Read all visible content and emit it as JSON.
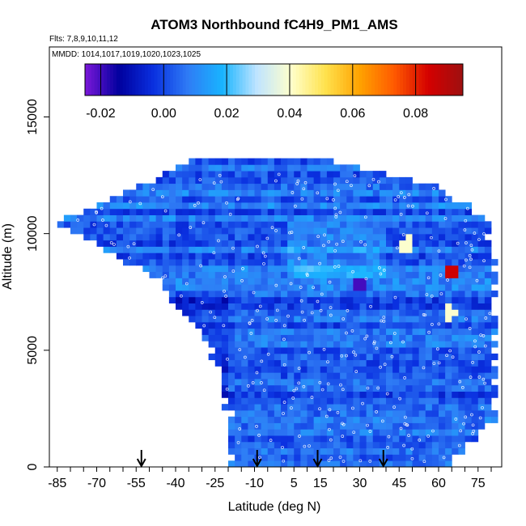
{
  "chart_data": {
    "type": "heatmap",
    "title": "ATOM3 Northbound fC4H9_PM1_AMS",
    "annotations": [
      "Flts: 7,8,9,10,11,12",
      "MMDD: 1014,1017,1019,1020,1023,1025"
    ],
    "xlabel": "Latitude (deg N)",
    "ylabel": "Altitude (m)",
    "xlim": [
      -88,
      84
    ],
    "ylim": [
      0,
      18000
    ],
    "x_ticks": [
      -85,
      -70,
      -55,
      -40,
      -25,
      -10,
      5,
      15,
      30,
      45,
      60,
      75
    ],
    "y_ticks": [
      0,
      5000,
      10000,
      15000
    ],
    "colorbar": {
      "range": [
        -0.025,
        0.095
      ],
      "ticks": [
        -0.02,
        0.0,
        0.02,
        0.04,
        0.06,
        0.08
      ],
      "tick_labels": [
        "-0.02",
        "0.00",
        "0.02",
        "0.04",
        "0.06",
        "0.08"
      ],
      "colors": [
        "#7b17d9",
        "#00009e",
        "#0a30e0",
        "#2f7cf5",
        "#19b4ff",
        "#bfe4ff",
        "#ffffcc",
        "#ffe24d",
        "#ffa200",
        "#ff5a00",
        "#d40000",
        "#9e1010"
      ]
    },
    "coverage_lat_bounds": [
      [
        0,
        -18,
        62
      ],
      [
        2000,
        -18,
        80
      ],
      [
        5000,
        -25,
        80
      ],
      [
        8000,
        -45,
        80
      ],
      [
        10500,
        -84,
        78
      ],
      [
        12000,
        -52,
        60
      ],
      [
        13000,
        -35,
        20
      ]
    ],
    "hotspots": [
      {
        "lat": 64,
        "alt": 8200,
        "value": 0.085
      },
      {
        "lat": 63,
        "alt": 6500,
        "value": 0.04
      },
      {
        "lat": 47,
        "alt": 9400,
        "value": 0.04
      },
      {
        "lat": 28,
        "alt": 7700,
        "value": -0.02
      }
    ],
    "arrows_lat": [
      -53,
      -9,
      14,
      39
    ]
  }
}
